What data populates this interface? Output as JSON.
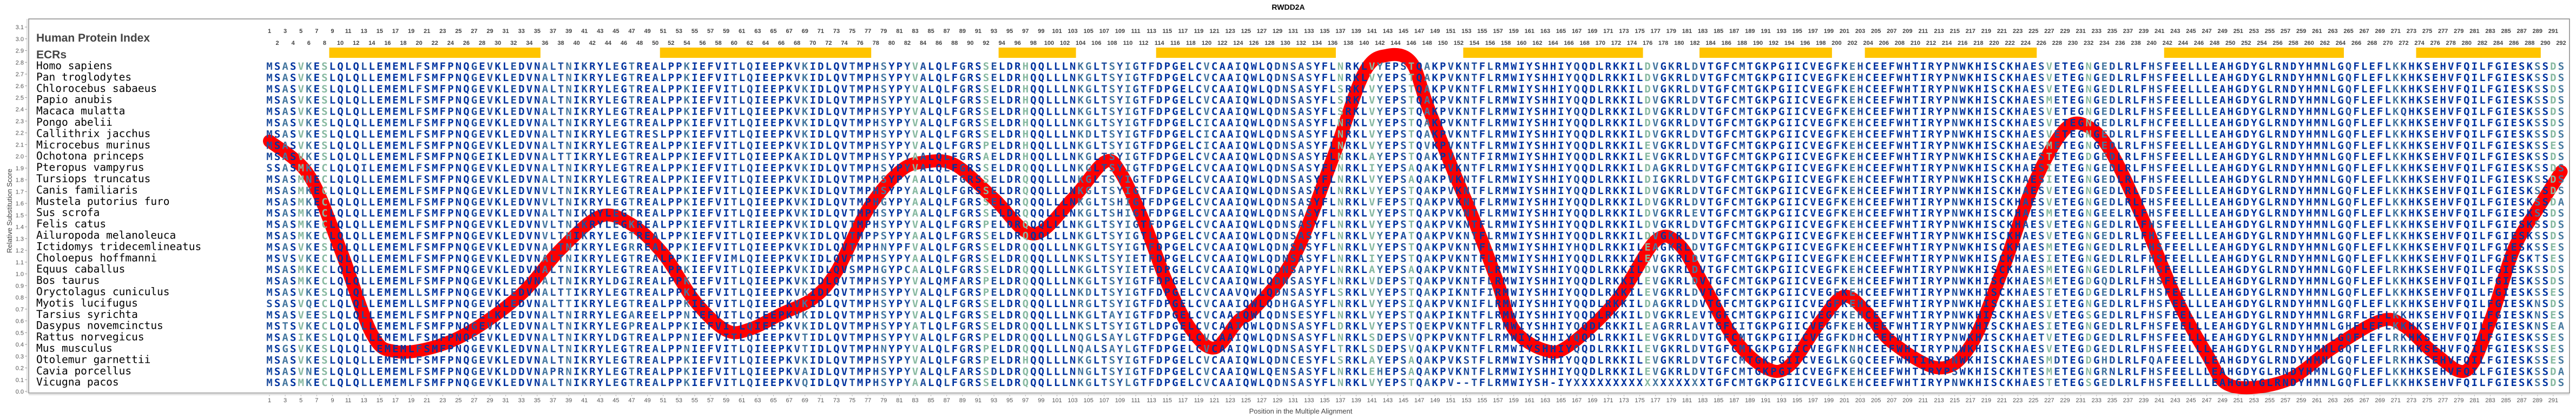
{
  "chart_data": {
    "type": "line",
    "title": "RWDD2A",
    "xlabel": "Position in the Multiple Alignment",
    "ylabel": "Relative Substitution Score",
    "xlim": [
      1,
      292
    ],
    "ylim": [
      0,
      3.1
    ],
    "grid": false,
    "line_color": "#FF0000",
    "yticks": [
      "0.0",
      "0.1",
      "0.2",
      "0.3",
      "0.4",
      "0.5",
      "0.6",
      "0.7",
      "0.8",
      "0.9",
      "1.0",
      "1.1",
      "1.2",
      "1.3",
      "1.4",
      "1.5",
      "1.6",
      "1.7",
      "1.8",
      "1.9",
      "2.0",
      "2.1",
      "2.2",
      "2.3",
      "2.4",
      "2.5",
      "2.6",
      "2.7",
      "2.8",
      "2.9",
      "3.0",
      "3.1"
    ],
    "xticks_bottom": {
      "start": 1,
      "end": 291,
      "step": 2
    },
    "x": [
      1,
      6,
      10,
      14,
      17,
      22,
      27,
      33,
      38,
      43,
      47,
      51,
      55,
      59,
      62,
      66,
      70,
      73,
      77,
      81,
      84,
      88,
      93,
      98,
      103,
      107,
      109,
      112,
      115,
      118,
      121,
      124,
      126,
      131,
      136,
      140,
      143,
      146,
      148,
      151,
      154,
      157,
      159,
      163,
      166,
      172,
      177,
      180,
      183,
      187,
      191,
      194,
      198,
      201,
      204,
      207,
      213,
      217,
      221,
      225,
      229,
      232,
      235,
      239,
      243,
      247,
      250,
      257,
      263,
      269,
      272,
      276,
      280,
      283,
      286,
      289,
      292
    ],
    "y": [
      2.13,
      1.84,
      1.21,
      0.49,
      0.34,
      0.38,
      0.53,
      0.83,
      1.21,
      1.49,
      1.42,
      1.17,
      0.77,
      0.52,
      0.53,
      0.66,
      0.79,
      1.02,
      1.55,
      1.87,
      1.95,
      1.93,
      1.64,
      1.34,
      1.64,
      1.95,
      1.87,
      1.45,
      0.92,
      0.53,
      0.37,
      0.6,
      0.7,
      1.13,
      1.98,
      2.71,
      2.86,
      2.8,
      2.44,
      1.93,
      1.45,
      0.92,
      0.53,
      0.35,
      0.39,
      0.77,
      1.28,
      1.25,
      0.92,
      0.45,
      0.2,
      0.22,
      0.6,
      0.81,
      0.66,
      0.42,
      0.2,
      0.39,
      1.02,
      1.76,
      2.23,
      2.25,
      2.02,
      1.45,
      0.81,
      0.32,
      0.05,
      0.09,
      0.37,
      0.6,
      0.56,
      0.32,
      0.18,
      0.6,
      1.21,
      1.55,
      1.87
    ]
  },
  "alignment": {
    "index_label": "Human Protein Index",
    "ecr_label": "ECRs",
    "ecr_color": "#FFC400",
    "position_ticks_top": {
      "start": 1,
      "end": 292,
      "step": 1
    },
    "ecrs": [
      [
        9,
        35
      ],
      [
        51,
        77
      ],
      [
        94,
        103
      ],
      [
        114,
        136
      ],
      [
        153,
        175
      ],
      [
        183,
        199
      ],
      [
        204,
        225
      ],
      [
        242,
        264
      ],
      [
        274,
        289
      ]
    ],
    "residue_colors": {
      "conserved": "#0033A0",
      "high": "#1F4E9E",
      "medium": "#45779F",
      "low": "#86B8A0"
    },
    "species": [
      {
        "name": "Homo sapiens",
        "sequence": "MSASVKESLQLQLLEMEMLFSMFPNQGEVKLEDVNALTNIKRYLEGTREALPPKIEFVITLQIEEPKVKIDLQVTMPHSYPYVALQLFGRSSELDRHQQLLLNKGLTSYIGTFDPGELCVCAAIQWLQDNSASYFLNRKLVYEPSTQAKPVKNTFLRMWIYSHHIYQQDLRKKILDVGKRLDVTGFCMTGKPGIICVEGFKEHCEEFWHTIRYPNWKHISCKHAESVETEGNGEDLRLFHSFEELLLEAHGDYGLRNDYHMNLGQFLEFLKKHKSEHVFQILFGIESKSSDS"
      },
      {
        "name": "Pan troglodytes",
        "sequence": "MSASVKESLQLQLLEMEMLFSMFPNQGEVKLEDVNALTNIKRYLEGTREALPPKIEFVITLQIEEPKVKIDLQVTMPHSYPYVALQLFGRSSELDRHQQLLLNKGLTSYIGTFDPGELCVCAAIQWLQDNSASYFLNRKLVYEPSTQAKPVKNTFLRMWIYSHHIYQQDLRKKILDVGKRLDVTGFCMTGKPGIICVEGFKEHCEEFWHTIRYPNWKHISCKHAESVETEGNGEDLRLFHSFEELLLEAHGDYGLRNDYHMNLGQFLEFLKKHKSEHVFQILFGIESKSSDS"
      },
      {
        "name": "Chlorocebus sabaeus",
        "sequence": "MSASVKESLQLQLLEMEMLFSMFPNQGEVKLEDVNALTNIKRYLEGTREALPPKIEFVITLQIEEPKVKIDLQVTMPHSYPYVALQLFGRSSELDRHQQLLLNKGLTSYIGTFDPGELCVCAAIQWLQDNSASYFLSRKLVYEPSTQAKPVKNTFLRMWIYSHHIYQQDLRKKILDVGKRLDVTGFCMTGKPGIICVEGFKEHCEEFWHTIRYPNWKHISCKHAESVETEGNGEDLRLFHSFEELLLEAHGDYGLRNDYHMNLGQFLEFLKKHKSEHVFQILFGIESKSSDS"
      },
      {
        "name": "Papio anubis",
        "sequence": "MSASVKESLQLQLLEMEMLFSMFPNQGEVKLEDVNALTNIKRYLEGTREALPPKIEFVITLQIEEPKVKIDLQVTMPHSYPYVALQLFGRSSELDRHQQLLLNKGLTSYIGTFDPGELCVCAAIQWLQDNSASYFLSRKLVYEPSTQAKPVKNTFLRMWIYSHHIYQQDLRKKILDVGKRLDVTGFCMTGKPGIICVEGFKEHCEEFWHTIRYPNWKHISCKHAESMETEGNGEDLRLFHSFEELLLEAHGDYGLRNDYHMNLGQFLEFLKKHKSEHVFQILFGIESKSSDS"
      },
      {
        "name": "Macaca mulatta",
        "sequence": "MSASVKESLQLQLLEMEMLFSMFPNQGEVKLEDVNALTNIKRYLEGTREALPPKIEFVITLQIEEPKVKIDLQVTMPHSYPYVALQLFGRSSELDRHQQLLLNKGLTSYIGTFDPGELCVCAAIQWLQDNSASYFLSRKLVYEPSTQAKPVKNTFLRMWIYSHHIYQQDLRKKILDVGKRLDVTGFCMTGKPGIICVEGFKEHCEEFWHTIRYPNWKHISCKHAESVETEGNGEDLRLFHSFEELLLEAHGDYGLRNDYHMNLGQFLEFLKQHKSEHVFQILFGIESKSSDS"
      },
      {
        "name": "Pongo abelii",
        "sequence": "MSASVKESLQLQLLEMEMLFSMFPNQGEVKLEDVNALTNIKRYLEGTREALPPKIEFVITLQIEEPKVKIDLQVTMPHSYPYVALQLFGRSSELDRHQQLLLNKGLTSYIGTFDPGELCICAAIQWLQDNSASYFLNRKLVYEPSTQAKPVKNTFLRMWIYSHHIYQQDLRKKILDVGKRLDVTGFCMTGKPGIICVEGFKEHCEEFWHTIRYPNWKHISCKHAESVETEGNGEDLRLFHCFEELLLEAHGDYGLRNDYHMNLGQFLEFLKKHKSEHVFQILFGIESKSSDS"
      },
      {
        "name": "Callithrix jacchus",
        "sequence": "MSASVKESLQLQLLEMEMLFSMFPNQGEVKLEDVNALTNIKRYLEGTRESLPPKIEFVITLQIEEPKVKIDLQVTMPHSYPYVALQLFGRSSELDRHQQLLLNKDLTSYIGTFDPGELCICAAIQWLQDNSASYFLNRKLVYEPSTQAKPVKNTFLRMWIYSHHIYQQDLRKKILDVGKRLDVTGFCMTGKPGIICVEGFKEHCEEFWHTIRYPNWKHISCKHAESVETEGNGEDLRLFHSFEELLLEAHGDYGLRNDYHMNLGQFLEFLKKHKSEHVFQILFGIESKSSDS"
      },
      {
        "name": "Microcebus murinus",
        "sequence": "MSASVKESLQLQLLEMEMLFSMFPNQGEVKLEDVNALTNIKRYLEGTREALPPKIEFVITLQIEEPKVKIDLQVTMPHSYPYVALQLFGRSPELDRHQQLLLNKGLTSYIGTFDPGELCICAAIQWLQDNSASYFLNRKLVYEPSTQVKPVKNTFLRMWIYSHHIYQQDLRKKILEVGKRLDVTGFCMTGKPGIICVEGFKEHCEEFWHTIRYPNWKHISCKHAESMETEGNGEDLRLFHSFEELLLEAHGDYGLRNDYHMNLGQFLEFLKKHKSEHVFQILFGIESKSSES"
      },
      {
        "name": "Ochotona princeps",
        "sequence": "MSASVKESLQLQLLEMEMLFSMFPNQGEIKLEDVNALTTIKRYLEGTREALPPKIEFVITLQIEEPKAKIDLQVTMPHSYPYAALQLFGRSAELDRHQQLLLNKGLTSYIGTFDPGELCVCAAIQWLQDNSASYFLNRKLAYEPSTQAKPVKNTFIRMWIYSHHIYQQDLRKKILEVGKRLDVTGFCMTGKPGIICVEGFKEHCEEFWHTIRYPNWKHISCKHAESTETEGDGEDLRLFHSFEELLLEAHGDYGLRNDYHMNLGQFLEFLKKHKSEHVFQILFGIESKSSDS"
      },
      {
        "name": "Pteropus vampyrus",
        "sequence": "SSASMKECLQLQILEMEMLFSMFPNQGEVKLEDVNALTNIKRYLEGTREALPPKIEFVITLQIEEPKVKIDLQVTMPHSYPYVALQLFGRSSELDRQQQLLLNKGLTSYIGTFDPGELCVCAAIQWLQDNSASYFLNRKLIYEPSAQAKPVKNTFLRMWIYSHHIYQQDLRKKILDAGKRLDVTGFCMTGKPGIICVEGFKEHCEEFWHTIRYPNWKHISCKHAESIETEGNGEDLRLFHSFEELLLEAHGDYGLRNDYHMNLGQFLEFLKKHKSEHVFQILFGIESKSSDS"
      },
      {
        "name": "Tursiops truncatus",
        "sequence": "MSASMNECLQLQLLEMEMLFSMFPNQGEVKLEDVNALTNIKRYLEGTREALPPKIEFVITLQIEEPKVKIDLQVTMPHSYPYAALQLFGRSSELDRQQQLLLNKGLTSYIGTFDPGELCVCAAIQWLQDNSASYFLNRKLVYEPSAQAKPVKNTFLRMWIYSHHIYQQDLRKKILDIGKRLDVTGFCMTGKPGIICVEGFKEHCEEFWHTIRYPNWKHISCKHAESIETEGNGEDLRLFHSFEELLLEAHGDYGLRNDYHMNLGQFLEFLKKHKSEHVFQILFGIESKSSDS"
      },
      {
        "name": "Canis familiaris",
        "sequence": "MSASMKECLQLQLLEMEMLFSMFPNQGEVKLEDVNVLTNIKRYLEGTREALPPKIEFVITLQIEEPKVKIDLQVTMPHSYPYAALQLFGRSSELDRQQQLLLNKGLTSYIGTFDPGELCVCAAIQWLQDNSASYFLNRKLVYEPSTQAKPVKNTFLRMWIYSHHIYQQDLRKKILDVGKRLDVTGFCMTGKPGIICVEGFKEHCEEFWHTIRYPNWKHISCKHAESVETEGNGEDLRLFDSFEELLLEAHGDYGLRNDYHMNLGQFLEFLKKHKSEHVFQILFGIESKSSDS"
      },
      {
        "name": "Mustela putorius furo",
        "sequence": "MSASMKECLQLQLLEMEMLFSMFPNQGEVKLEDVNVLTNIKRYLEGTREALPPKIEFVITLQIEEPKVKIDLQVTMPHGYPYAALQLFGRSSELDRQQQLLLNKGLTSHIGTFDPGELCVCAAIQWLQDNSASYFLNRKLVFEPSTQAKPVKNTFLRMWIYSHHIYQQDLRKKILDVGKRLDVTGFCMTGKPGIICVEGFKEHCEEFWHTIRYPNWKHISCKHAESVETEGNGEDLRLFHSFEELLLEAHGDYGLRNDYHMNLGQFLEFLKKHKSEHVFQILFGIESKSSDA"
      },
      {
        "name": "Sus scrofa",
        "sequence": "MSASMKECLQLQLLEMEMLFSMFPNQGEVKLEDVNALTNIKRYLEGTREALPPKIEFVITLQIEEPKVKIDLQVTMPHSYPYAALQLFGRSSELDRQQQLLLNKGLTSHIGTFDPGELCVCAAIQWLQDNSASYFLNRKLVYEPSTQAKPVKNTFLRMWIYSHHIYQQDLRKKILDVGKRLEVTGFCMTGKPGIICVEGFKEHCEEFWHTIRYPNWKHISCKHAESMETEGNGEELRLFHSFEELLLEAHGDYGLRNDYHMNLGQFLEFLKKHKSEHVFQILFGIESKSSDS"
      },
      {
        "name": "Felis catus",
        "sequence": "MSASMKECLQLQLLEMEMLFSMFPNQGEVKLEDVNVLTNIKRYLEGKREALPPKIEFVITLRIEEPKVKIDLQVTMPHSYPYVALQLFGRSPELDRQQQLLLNKGLTSYIGTFDPGELCVCAAIQWLQDNSASYFLNRKLVYEPSTQAKPVKNTFLRMWIYSHHIYQQDLRKKILDVGKRLDVTGFCMTGKPGIICVEGFKEHCEEFWHTIRYPNWKHISCKHAESVETEGNGEDLRLFHSFEELLLEAHGDYGLRNDYHMNLGQFLEFLKKHKSEHVFQILFGIESKSSDS"
      },
      {
        "name": "Ailuropoda melanoleuca",
        "sequence": "MSASMKECLQLQLLEMEMLFSMFPNQGEVKLEDVNVLTHIKRYLEGTREALPPKIEFVITLQIEEPKVKIDLQVTMPPSYPYAALQLFGRSSELDRQQQLLLNKGLTSYIGTLDPGELCVCAAIQWLQDNSASYFLNRKLVYEPATQAKPVKNTFLRMWIYSHHIYQQDLRKKILDVGKRLDVTGFCMTGKPGIICVEGFKEHCEEFWHTIRYPNWKHISCKHAESVETEGNGEDLRLFHSFEELLLEAHGDYGLRNDYHMNLGQFLEFLKKHKSEHVFQILFGIESKSSDS"
      },
      {
        "name": "Ictidomys tridecemlineatus",
        "sequence": "MSASVKESLQLQLLEMEMLFSMFPNQGEVKLEDVNALTNIKRYLEGRREALPPKIEFVITLQIEEPKVKIDLQVTMPHNYPFVALQLFGRSSELDRQQQLLLNKGLTSYIGTFDPGELCVCAAIQWLQDNSASYFLNRKLVYEPSTQAKPVKNTFLRMWIYSHHIYHQDLRKKILEAGKRLDVTGFCMTGKPGIICVEGFKEHCEEFWHTIRYPNWKHISCKHAESMETEGNGEDLRLFHSFEELLLEAHGDYGLRNDYHMNLGQFLEFLKKHKSEHVFQILFGIESKSSES"
      },
      {
        "name": "Choloepus hoffmanni",
        "sequence": "MSVSVKECLQLQLLEMEMLFSMFPNQGEVKLEDVNALTNIKRYLEGTREALPPKIEFVIMLQIEEPKVKIDLQVTMPHSYPYAALQLFGRSSELDRQQQLLLNKSLTSYIETFDPGELCVCAAIQWLQDNSASYFLNRKLIYEPSTQAKPVKNTFLRMWIYSHHIYQQDLRKKILEVGKRLDVTGFCMTGKPGIICVEGFKEHCEEFWHTIRYPNWKHISCKHAESIETEGNGEDLRLFHSFEELLLEAHGDYGLRNDYHMNLGQFLEFLKKHKSEHVFQILFGIESKTSES"
      },
      {
        "name": "Equus caballus",
        "sequence": "MSASMKECLQLQLLEMEMLFSMFPNQGEVKLEDVNALTNIKRYLEGTREALPPKIEFVITLQIEEPKVKIDLQVSMPHGYPCAALQLFGRSSELDRQQQLLLNKGLTSYIETFDPGELCVCAAIQWLQDNSAPYFLNRKLAYEPSAQAKPVKNTFLRMWIYSHHIYQQDLRKKILDVGKRLDVTGFCMTGKPGIICVEGFKEHCEEFWHTIRYPNWKHISCKHAESMETEGNGEDLRLFHSFEELLLEAHGDYGLRNDYHMNLGQFLEFLRKHKSEHVFQILFGIESKSSDS"
      },
      {
        "name": "Bos taurus",
        "sequence": "MSASMKECLQLQLLEMEMLFSMFPNQGEVKLEDVNALTNIKRYLDGIREALPPKIEFVITLQIEEPKVKIDLQVTMPHSYPYVALQMFARSPELDRQQQLLLNKGLTSYIGTFDPGELCVCAAIQWLQDNSASYFLNRKLVDEPSTQAKPVKNTFLRMWIYSHHIYQQDLRKKILEVGKRLDVTGFCMTGKPGIICVEGFKEHCEEFWHTIRYPNWKHISCKHAESMETEGDGQDLRLFHSFEELLLEAHGDYGLRNDYHMNLGQFLEFLKKHKSEHVFQILFGIESKSSDS"
      },
      {
        "name": "Oryctolagus cuniculus",
        "sequence": "MSASVKESLQLQLLEMEMLLSMFPNQGEVKLEDVNALTTIKRYLEGTREALPPKIEFVITLQIEEPKVKIDLQVTMPHSYPYVALQLFGRSPELDRQQQLLLNKDLTSYIGTFDPGELCVCAAVQWLQDNSASYFLSRKLVYEPSTQAKPIKNTFIRMWIYSHHIYQQDLRKKILEVGKRLDVTGFCMTGKPGIICVEGFKEHCEEFWHTIRYPNWKHISCKHAESTETEGDGEDLRLFHSFEELLLEAHGDYGLRNDYHMNLGQFLEFLKKHKSEHVFQILFGIESKSSES"
      },
      {
        "name": "Myotis lucifugus",
        "sequence": "SSASVQECLQLQLLEMEMLLSMFPNQGEVKLEDVNALTTIKRYLEGTREALPPKIEFVITLQIEEPKVKIDLQVTMPHSYPYVALQLFGRSSELDRQQQLLLNRGLTSYIGTFDPGELCVCAAIQWLQDHGASYFLNRKLVYEPSIQAKPVKNIFLRMWIYSHHIYQQDLRKKILDAGKRLDVTGFCMTGKPGIICVEGFKEHCEEFWHTIRYPNWKHISCKHAESIETEGNGEDLRLFHSFEELLLEAHGDYGLRNDYHMNLGQFLEFLKKHKSEHVFQILFGIESKNSDS"
      },
      {
        "name": "Tarsius syrichta",
        "sequence": "MSASVEESLQLQLLEMEMLFSMFPNQEELKLEDVNALTNIRRYLEGAREELPPNIEFVITLQIEEPKVKIDLQVTMPHSYPYVALQLFGRSSELDRQQQLLLNKGLTAYIGTFDPGELCVCAAIQWLQDNSESYFLNRKLVYEPSTQAKPIKNTFLRMWIYSHHIYQQDLRKKILDVGKRLEVTGFCMTGKPGIICVEGFKEHCEEFWHTIRYPNWKHISCKHAESVETEGSGEDLRLFHSFEELLLEAHGDYGLRNDYHMNLGRFLEFLKKHKSEHVFQILFGIESKNSES"
      },
      {
        "name": "Dasypus novemcinctus",
        "sequence": "MSTSVKECLQLQLLEMEMLFSMFPNQGEVKLEDVNALTNIKRYLEGPREALPPKIEFVITLQIEEPKVKIDLQVTMPHSYPYATLQLFGRSSELDRQQQLLLNKSLTSYIGTLDPGELCVCAAIQWLQDNSASYFLDRKLVYEPSTQEKPVKNTFLRMWIYSHHIYQQDLRKKILEAGRRLAVTGFCITGKPGIICVEGFKEHCEEFWHTIRYPNWKHISCKHAESIETEGNGEDLRLFHSFEELLLEAHGDYGLRNDYHMNLGHFLEFLKKHKSEHVFQILFGIESKNSEA"
      },
      {
        "name": "Rattus norvegicus",
        "sequence": "MSASIKESLQLQLLEMEMLFSMFPNQGEVKLEDVNALTNIKRYLDGTREALPPNIEFVITLQIEEPKVTIDLQVTMPHSYPYVALQLFGRSPELDRQQQLLLNQGLSAYLGTFDPGELCVCAAIQWLQDNSASYFLNRKLSDEPSVQPKPVKNTFLRMWIYSHHIYQQDLRKKILEVGKRLDVTGFCMTGKPGIICVEGFKDHCEEFWHTIRYPNWKHISCKHAETVETEGDGEDLRLFHSFEELLLEAHGDYGLRNDYHMNLGQFLEFLRKHKSEHVFQILFGIESKSSES"
      },
      {
        "name": "Mus musculus",
        "sequence": "MSGSVKESLQLQLLEMEMLFSMFPNQGEVKLEDVNALTNIKRYLEGTREALPPNIEFVITLQIEEPKVTIDLQVTMPHNYPYVALQLFGRSPELDRQQQLLLNQALSAYLGTFDPGELCVCAAIQWLQDNSASYFLTRKLSDEPSVQAKPVKNTFLRMWIYSHHIYQQDLRKKILEVGKRLDVTGFCMTGKPGIICVEGFKNHCEEFWHTIRYPNWKHISCKHAESVETEGDGEDLRLFHSFEELLLEAHGDYGLRNDYHMNLGQFLEFLRKHKSEHVFQILFGIESKSSES"
      },
      {
        "name": "Otolemur garnettii",
        "sequence": "MSASVKESLQLQLLEMEMLFSMFPNQGEVKLEDVNALTNIKRYLEGTREALPPKIEFVITLQIEEPKVKIDLQVTMPHSYPYVALQLFGRSPELDRHQQLLLNKGLTSYIGTFDPGELCVCAAIQWLQDNCESYFLSRKLAYEPSAQAKPVKSTFLRMWIYSHHIYQQDLRKKILEVGKRLDVTGFCMTGKPGIICVEGLKGQCEEFWHTIRYPNWKHISCKHAESMDTEGDGHDLRLFQAFEELLLEAHGDYGLRNDYHMNLGQFLEFLRKHKSEHVFQILFGIESKSSES"
      },
      {
        "name": "Cavia porcellus",
        "sequence": "MSASVNESLQLQLLEMEMLFSMFPNQGEVKLDDVNAPRNIKRYLEGTREALPPKIEFVITLQIEEPKVAIDLQVTMPHSYPYVALQLFARSSDLDRQQQLLLNNGLTSYIGTFDPGELCVCAAIQWLQENSASYFLNRKLEHEPSAQAKPVKNTFLRMWIYSHHIYQQDLRKKILEVGKRLDVTGFCMTGKPGIICVEGFKEHCEEFWHTIRYPSWKHISCKHTESMETEGNGRNLRLFHSFEELLLEAHGDYGLRNDYHMNLGQFLEFLKKHKSEHVFQILFGIESKSSDA"
      },
      {
        "name": "Vicugna pacos",
        "sequence": "MSASMKECLQLQLLEMEMLFSMFPNQGEVKLEDVNALTNIKRYLEGTREALPPKIEFVITLQIEEPKVQIDLQVTMPHSYPYAALQLFGRSSELDRQQQLLLNKGLTSYLGTFDPGELCVCAAIQWLQDNSASYFLNRKLVYEPSTQAKPV--TFLRMWIYSH-IYXXXXXXXXXXXXXXXXXTGFCMTGKPGIICVEGLKEHCEEFWHTIRYPNWKHISCKHAESTETEGSGEDLRLFHSFEELLLEAHGDYGLRNDYHMNLGQFLEFLKKHKSEHVFQILFGIESKSSDS"
      }
    ]
  }
}
